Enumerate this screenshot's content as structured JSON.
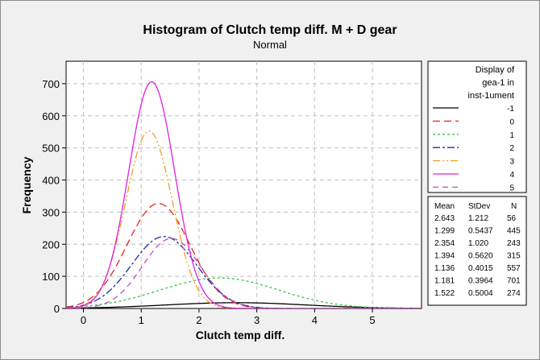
{
  "chart_data": {
    "type": "line",
    "title": "Histogram of Clutch temp diff. M + D gear",
    "subtitle": "Normal",
    "xlabel": "Clutch temp diff.",
    "ylabel": "Frequency",
    "xlim": [
      -0.3,
      5.85
    ],
    "ylim": [
      0,
      770
    ],
    "x_ticks": [
      "0",
      "1",
      "2",
      "3",
      "4",
      "5"
    ],
    "y_ticks": [
      "0",
      "100",
      "200",
      "300",
      "400",
      "500",
      "600",
      "700"
    ],
    "grid": true,
    "legend": {
      "title": [
        "Display of",
        "gea-1 in",
        "inst-1ument"
      ],
      "position": "right"
    },
    "stats_header": [
      "Mean",
      "StDev",
      "N"
    ],
    "series": [
      {
        "name": "-1",
        "mean": 2.643,
        "stdev": 1.212,
        "n": 56,
        "mean_label": "2.643",
        "stdev_label": "1.212",
        "n_label": "56",
        "color": "#000000",
        "dash": "",
        "peak": 18
      },
      {
        "name": "0",
        "mean": 1.299,
        "stdev": 0.5437,
        "n": 445,
        "mean_label": "1.299",
        "stdev_label": "0.5437",
        "n_label": "445",
        "color": "#e8231e",
        "dash": "9,5",
        "peak": 327
      },
      {
        "name": "1",
        "mean": 2.354,
        "stdev": 1.02,
        "n": 243,
        "mean_label": "2.354",
        "stdev_label": "1.020",
        "n_label": "243",
        "color": "#3fbf3f",
        "dash": "3,3",
        "peak": 95
      },
      {
        "name": "2",
        "mean": 1.394,
        "stdev": 0.562,
        "n": 315,
        "mean_label": "1.394",
        "stdev_label": "0.5620",
        "n_label": "315",
        "color": "#1f2fb0",
        "dash": "9,3,3,3",
        "peak": 224
      },
      {
        "name": "3",
        "mean": 1.136,
        "stdev": 0.4015,
        "n": 557,
        "mean_label": "1.136",
        "stdev_label": "0.4015",
        "n_label": "557",
        "color": "#f0a020",
        "dash": "9,3,2,3,2,3",
        "peak": 553
      },
      {
        "name": "4",
        "mean": 1.181,
        "stdev": 0.3964,
        "n": 701,
        "mean_label": "1.181",
        "stdev_label": "0.3964",
        "n_label": "701",
        "color": "#e020e0",
        "dash": "",
        "peak": 706
      },
      {
        "name": "5",
        "mean": 1.522,
        "stdev": 0.5004,
        "n": 274,
        "mean_label": "1.522",
        "stdev_label": "0.5004",
        "n_label": "274",
        "color": "#c050c0",
        "dash": "7,5",
        "peak": 218
      }
    ]
  }
}
